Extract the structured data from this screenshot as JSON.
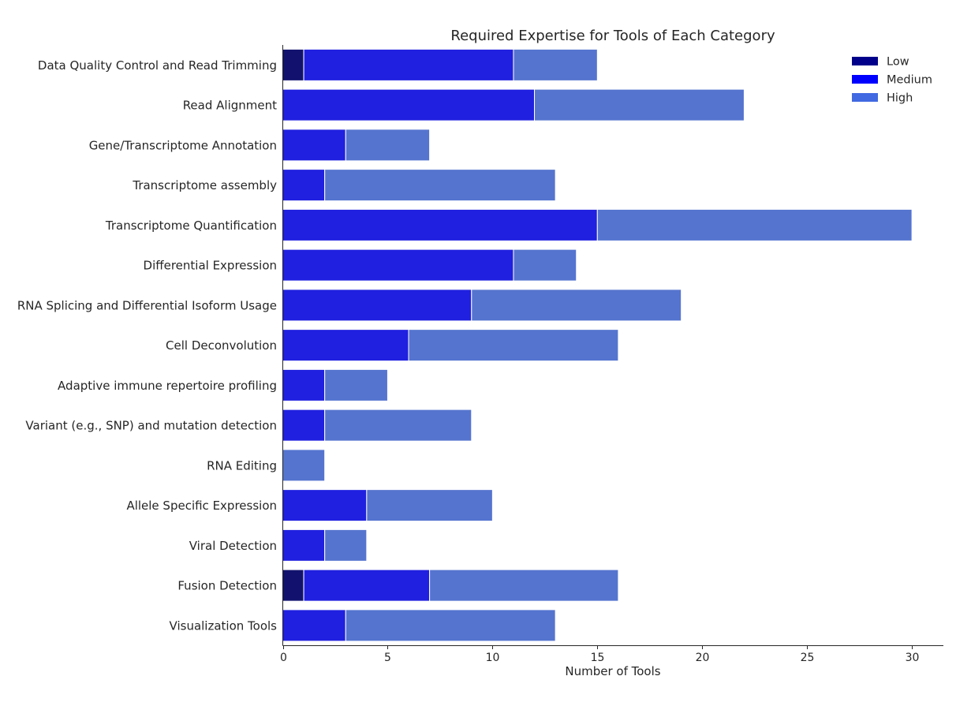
{
  "chart_data": {
    "type": "bar",
    "orientation": "horizontal",
    "stacked": true,
    "title": "Required Expertise for Tools of Each Category",
    "xlabel": "Number of Tools",
    "ylabel": "",
    "xlim": [
      0,
      31.5
    ],
    "xticks": [
      0,
      5,
      10,
      15,
      20,
      25,
      30
    ],
    "grid": false,
    "legend_position": "top-right",
    "categories": [
      "Data Quality Control and Read Trimming",
      "Read Alignment",
      "Gene/Transcriptome Annotation",
      "Transcriptome assembly",
      "Transcriptome Quantification",
      "Differential Expression",
      "RNA Splicing and Differential Isoform Usage",
      "Cell Deconvolution",
      "Adaptive immune repertoire profiling",
      "Variant (e.g., SNP) and mutation detection",
      "RNA Editing",
      "Allele Specific Expression",
      "Viral Detection",
      "Fusion Detection",
      "Visualization Tools"
    ],
    "series": [
      {
        "name": "Low",
        "color": "#12126e",
        "legend_color": "#00008b",
        "values": [
          1,
          0,
          0,
          0,
          0,
          0,
          0,
          0,
          0,
          0,
          0,
          0,
          0,
          1,
          0
        ]
      },
      {
        "name": "Medium",
        "color": "#2020e0",
        "legend_color": "#0000ff",
        "values": [
          10,
          12,
          3,
          2,
          15,
          11,
          9,
          6,
          2,
          2,
          0,
          4,
          2,
          6,
          3
        ]
      },
      {
        "name": "High",
        "color": "#5574cf",
        "legend_color": "#4169e1",
        "values": [
          4,
          10,
          4,
          11,
          15,
          3,
          10,
          10,
          3,
          7,
          2,
          6,
          2,
          9,
          10
        ]
      }
    ]
  }
}
